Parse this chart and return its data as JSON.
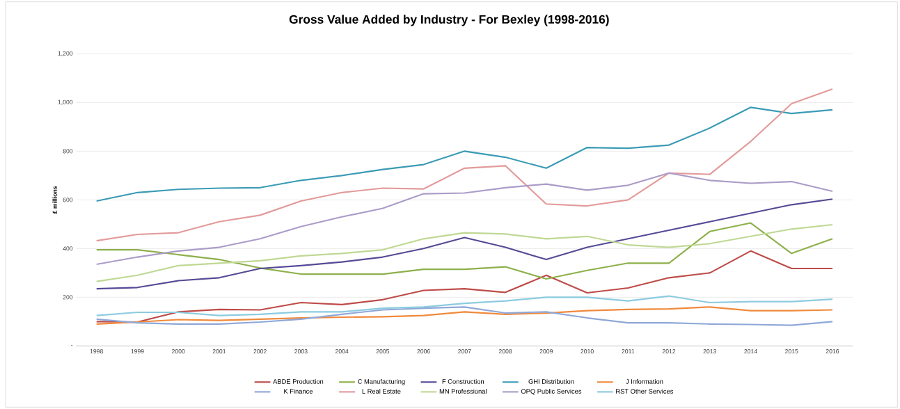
{
  "chart_data": {
    "type": "line",
    "title": "Gross Value Added by Industry - For Bexley (1998-2016)",
    "ylabel": "£ millions",
    "categories": [
      "1998",
      "1999",
      "2000",
      "2001",
      "2002",
      "2003",
      "2004",
      "2005",
      "2006",
      "2007",
      "2008",
      "2009",
      "2010",
      "2011",
      "2012",
      "2013",
      "2014",
      "2015",
      "2016"
    ],
    "ylim": [
      0,
      1200
    ],
    "yticks": [
      {
        "value": 0,
        "label": "-"
      },
      {
        "value": 200,
        "label": "200"
      },
      {
        "value": 400,
        "label": "400"
      },
      {
        "value": 600,
        "label": "600"
      },
      {
        "value": 800,
        "label": "800"
      },
      {
        "value": 1000,
        "label": "1,000"
      },
      {
        "value": 1200,
        "label": "1,200"
      }
    ],
    "grid": "y",
    "legend": "bottom",
    "marker": "none",
    "line_style": "solid",
    "series": [
      {
        "name": "ABDE Production",
        "color": "#be4b48",
        "values": [
          100,
          98,
          140,
          150,
          148,
          178,
          170,
          190,
          228,
          235,
          220,
          290,
          218,
          238,
          280,
          300,
          390,
          318,
          318
        ]
      },
      {
        "name": "C Manufacturing",
        "color": "#8db04a",
        "values": [
          395,
          395,
          375,
          355,
          320,
          295,
          295,
          295,
          315,
          315,
          325,
          275,
          310,
          340,
          340,
          470,
          505,
          380,
          440
        ]
      },
      {
        "name": "F Construction",
        "color": "#554a96",
        "values": [
          235,
          240,
          268,
          280,
          318,
          330,
          345,
          365,
          400,
          445,
          405,
          355,
          405,
          440,
          475,
          510,
          545,
          580,
          603
        ]
      },
      {
        "name": "GHI Distribution",
        "color": "#3b9bb5",
        "values": [
          595,
          630,
          643,
          648,
          650,
          680,
          700,
          725,
          745,
          800,
          775,
          730,
          815,
          812,
          825,
          895,
          980,
          955,
          970
        ]
      },
      {
        "name": "J Information",
        "color": "#f08a3c",
        "values": [
          90,
          98,
          108,
          105,
          110,
          115,
          118,
          120,
          125,
          140,
          130,
          135,
          145,
          150,
          152,
          160,
          145,
          145,
          148
        ]
      },
      {
        "name": "K Finance",
        "color": "#8fa8d8",
        "values": [
          110,
          95,
          90,
          90,
          98,
          110,
          130,
          148,
          155,
          160,
          135,
          140,
          115,
          95,
          95,
          90,
          88,
          85,
          100
        ]
      },
      {
        "name": "L Real Estate",
        "color": "#e39a9a",
        "values": [
          432,
          458,
          465,
          510,
          537,
          595,
          630,
          648,
          645,
          730,
          740,
          583,
          575,
          600,
          710,
          705,
          840,
          995,
          1055
        ]
      },
      {
        "name": "MN Professional",
        "color": "#c0d894",
        "values": [
          265,
          290,
          330,
          340,
          350,
          370,
          380,
          395,
          440,
          465,
          460,
          440,
          450,
          415,
          405,
          420,
          450,
          480,
          498
        ]
      },
      {
        "name": "OPQ Public Services",
        "color": "#ab9cc8",
        "values": [
          335,
          365,
          390,
          405,
          440,
          490,
          530,
          565,
          625,
          628,
          650,
          665,
          640,
          660,
          710,
          680,
          668,
          675,
          635
        ]
      },
      {
        "name": "RST Other Services",
        "color": "#8ccbe0",
        "values": [
          125,
          138,
          138,
          125,
          130,
          140,
          140,
          155,
          160,
          175,
          185,
          200,
          200,
          185,
          205,
          178,
          182,
          182,
          192
        ]
      }
    ]
  }
}
